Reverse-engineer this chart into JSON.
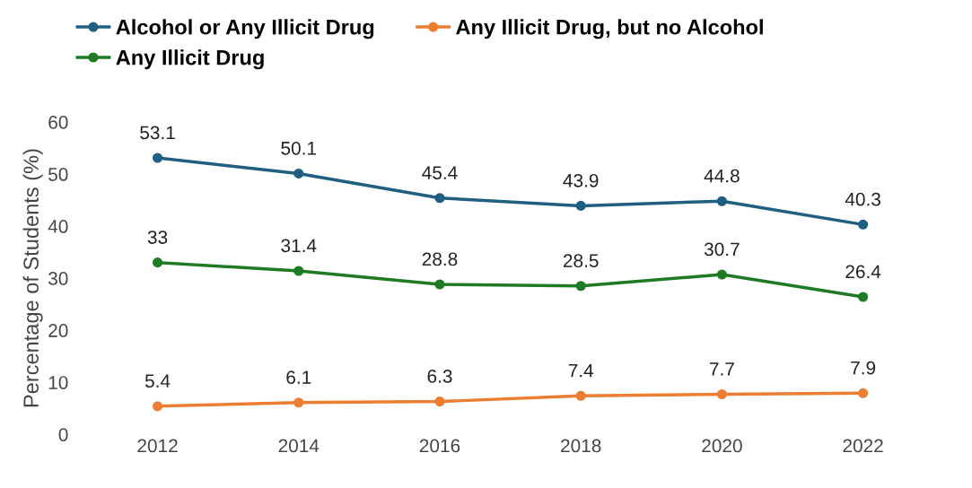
{
  "chart_data": {
    "type": "line",
    "ylabel": "Percentage of Students (%)",
    "categories": [
      "2012",
      "2014",
      "2016",
      "2018",
      "2020",
      "2022"
    ],
    "series": [
      {
        "name": "Alcohol or Any Illicit Drug",
        "color": "#1f5f82",
        "values": [
          53.1,
          50.1,
          45.4,
          43.9,
          44.8,
          40.3
        ]
      },
      {
        "name": "Any Illicit Drug, but no Alcohol",
        "color": "#ed7d31",
        "values": [
          5.4,
          6.1,
          6.3,
          7.4,
          7.7,
          7.9
        ]
      },
      {
        "name": "Any Illicit Drug",
        "color": "#1e7b23",
        "values": [
          33,
          31.4,
          28.8,
          28.5,
          30.7,
          26.4
        ]
      }
    ],
    "ylim": [
      0,
      60
    ],
    "yticks": [
      0,
      10,
      20,
      30,
      40,
      50,
      60
    ],
    "grid": false,
    "legend": "top left",
    "marker": "circle",
    "line_style": "solid",
    "data_labels": true
  }
}
